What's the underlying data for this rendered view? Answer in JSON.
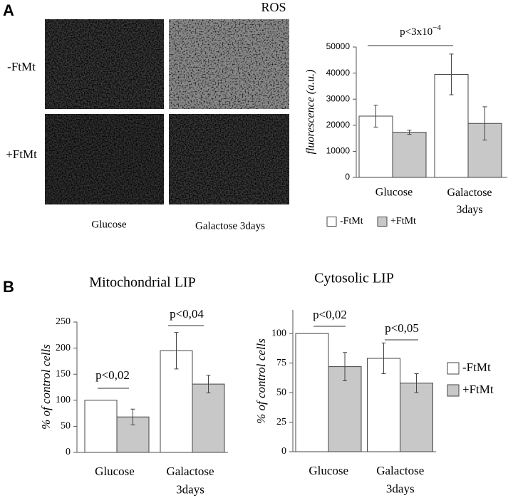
{
  "figure": {
    "panel_a": "A",
    "panel_b": "B",
    "images": {
      "title": "ROS",
      "rows": [
        "-FtMt",
        "+FtMt"
      ],
      "columns": [
        "Glucose",
        "Galactose 3days"
      ]
    }
  },
  "chart_data": [
    {
      "type": "bar",
      "ylabel": "fluorescence (a.u.)",
      "categories": [
        "Glucose",
        "Galactose 3days"
      ],
      "series": [
        {
          "name": "-FtMt",
          "color": "#ffffff",
          "values": [
            23500,
            39500
          ],
          "errors": [
            4200,
            7800
          ]
        },
        {
          "name": "+FtMt",
          "color": "#c8c8c8",
          "values": [
            17300,
            20700
          ],
          "errors": [
            800,
            6400
          ]
        }
      ],
      "ylim": [
        0,
        50000
      ],
      "yticks": [
        0,
        10000,
        20000,
        30000,
        40000,
        50000
      ],
      "annotations": [
        {
          "text": "p<3x10",
          "superscript": "−4"
        }
      ],
      "legend": "bottom"
    },
    {
      "type": "bar",
      "title": "Mitochondrial LIP",
      "ylabel": "% of control cells",
      "categories": [
        "Glucose",
        "Galactose 3days"
      ],
      "series": [
        {
          "color": "#ffffff",
          "values": [
            100,
            195
          ],
          "errors": [
            0,
            35
          ]
        },
        {
          "color": "#c8c8c8",
          "values": [
            68,
            131
          ],
          "errors": [
            15,
            17
          ]
        }
      ],
      "ylim": [
        0,
        250
      ],
      "yticks": [
        0,
        50,
        100,
        150,
        200,
        250
      ],
      "annotations": [
        {
          "text": "p<0,02"
        },
        {
          "text": "p<0,04"
        }
      ]
    },
    {
      "type": "bar",
      "title": "Cytosolic LIP",
      "ylabel": "% of control cells",
      "categories": [
        "Glucose",
        "Galactose 3days"
      ],
      "series": [
        {
          "name": "-FtMt",
          "color": "#ffffff",
          "values": [
            100,
            79
          ],
          "errors": [
            0,
            13
          ]
        },
        {
          "name": "+FtMt",
          "color": "#c8c8c8",
          "values": [
            72,
            58
          ],
          "errors": [
            12,
            8
          ]
        }
      ],
      "ylim": [
        0,
        120
      ],
      "yticks": [
        0,
        25,
        50,
        75,
        100
      ],
      "annotations": [
        {
          "text": "p<0,02"
        },
        {
          "text": "p<0,05"
        }
      ],
      "legend": "right"
    }
  ]
}
